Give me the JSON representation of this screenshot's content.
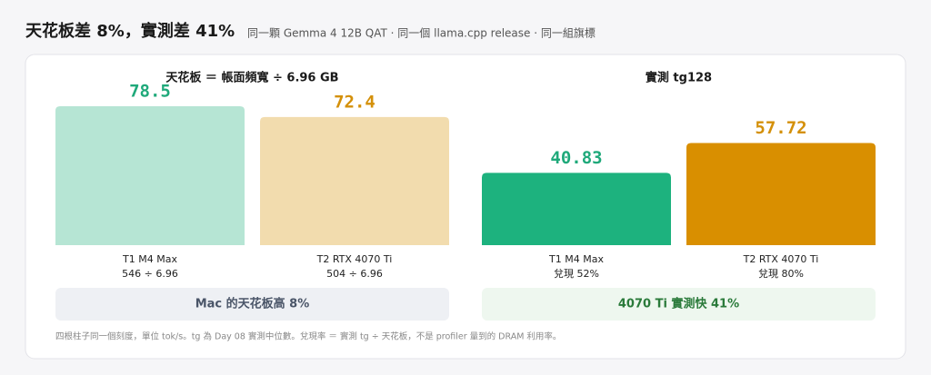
{
  "header": {
    "title": "天花板差 8%，實測差 41%",
    "subtitle": "同一顆 Gemma 4 12B QAT · 同一個 llama.cpp release · 同一組旗標"
  },
  "chart_data": [
    {
      "type": "bar",
      "title": "天花板 ＝ 帳面頻寬 ÷ 6.96 GB",
      "categories": [
        "T1 M4 Max",
        "T2 RTX 4070 Ti"
      ],
      "sublabels": [
        "546 ÷ 6.96",
        "504 ÷ 6.96"
      ],
      "values": [
        78.5,
        72.4
      ],
      "colors": [
        "#b6e5d4",
        "#f2dcae"
      ],
      "label_colors": [
        "#1fa97a",
        "#d4900a"
      ],
      "callout": {
        "text": "Mac 的天花板高 8%",
        "background": "#eef0f4",
        "color": "#4a5568"
      }
    },
    {
      "type": "bar",
      "title": "實測 tg128",
      "categories": [
        "T1 M4 Max",
        "T2 RTX 4070 Ti"
      ],
      "sublabels": [
        "兌現 52%",
        "兌現 80%"
      ],
      "values": [
        40.83,
        57.72
      ],
      "colors": [
        "#1db27e",
        "#d98f00"
      ],
      "label_colors": [
        "#1fa97a",
        "#d4900a"
      ],
      "callout": {
        "text": "4070 Ti 實測快 41%",
        "background": "#eef7ef",
        "color": "#2a7a3a"
      }
    }
  ],
  "footnote": "四根柱子同一個刻度，單位 tok/s。tg 為 Day 08 實測中位數。兌現率 ＝ 實測 tg ÷ 天花板，不是 profiler 量到的 DRAM 利用率。"
}
